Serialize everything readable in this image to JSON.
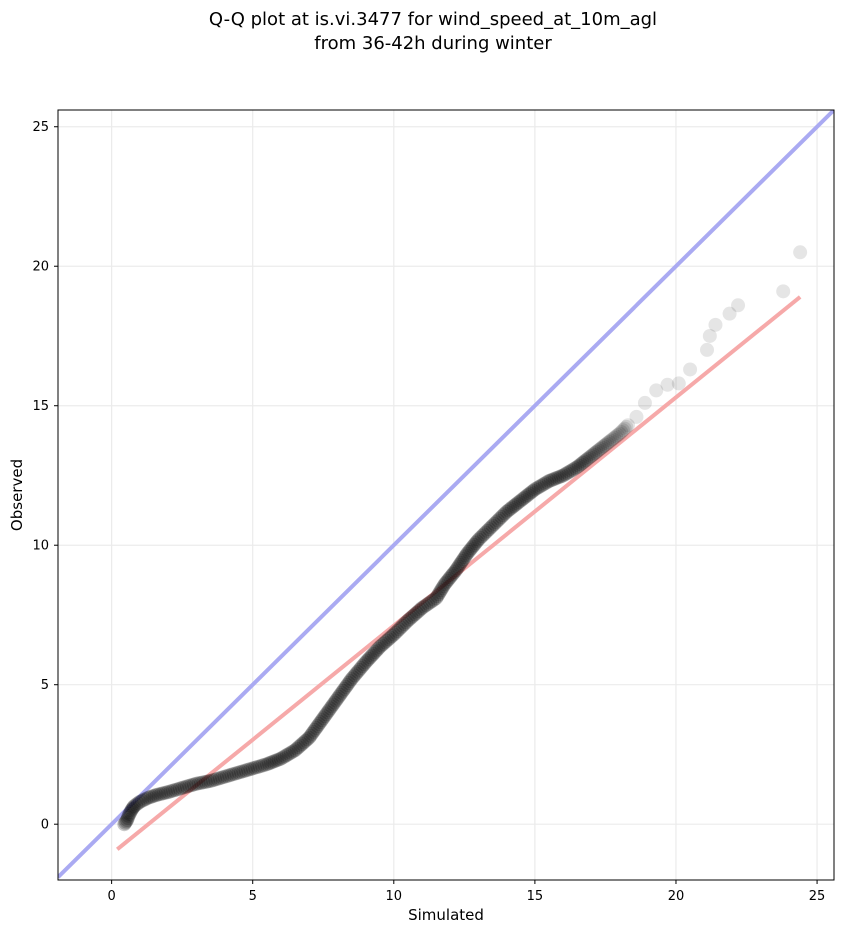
{
  "chart_data": {
    "type": "scatter",
    "title": [
      "Q-Q plot at is.vi.3477 for wind_speed_at_10m_agl",
      "from 36-42h during winter"
    ],
    "xlabel": "Simulated",
    "ylabel": "Observed",
    "xlim": [
      -1.9,
      25.6
    ],
    "ylim": [
      -2.0,
      25.6
    ],
    "x_ticks": [
      0,
      5,
      10,
      15,
      20,
      25
    ],
    "y_ticks": [
      0,
      5,
      10,
      15,
      20,
      25
    ],
    "grid": true,
    "marker_color": "#000000",
    "identity_line": {
      "color": "#aaaaf2",
      "from": [
        -1.9,
        -1.9
      ],
      "to": [
        25.6,
        25.6
      ]
    },
    "fit_line": {
      "color": "#f6a9a9",
      "from": [
        0.2,
        -0.9
      ],
      "to": [
        24.4,
        18.9
      ]
    },
    "quantile_curve": [
      [
        0.45,
        0.0
      ],
      [
        0.55,
        0.15
      ],
      [
        0.6,
        0.3
      ],
      [
        0.7,
        0.5
      ],
      [
        0.8,
        0.65
      ],
      [
        1.0,
        0.8
      ],
      [
        1.3,
        0.95
      ],
      [
        1.6,
        1.05
      ],
      [
        2.0,
        1.15
      ],
      [
        2.5,
        1.3
      ],
      [
        3.0,
        1.45
      ],
      [
        3.5,
        1.55
      ],
      [
        4.0,
        1.7
      ],
      [
        4.5,
        1.85
      ],
      [
        5.0,
        2.0
      ],
      [
        5.5,
        2.15
      ],
      [
        6.0,
        2.35
      ],
      [
        6.5,
        2.65
      ],
      [
        7.0,
        3.1
      ],
      [
        7.5,
        3.8
      ],
      [
        8.0,
        4.5
      ],
      [
        8.5,
        5.2
      ],
      [
        9.0,
        5.8
      ],
      [
        9.5,
        6.35
      ],
      [
        10.0,
        6.8
      ],
      [
        10.5,
        7.3
      ],
      [
        11.0,
        7.75
      ],
      [
        11.5,
        8.1
      ],
      [
        11.8,
        8.6
      ],
      [
        12.2,
        9.1
      ],
      [
        12.6,
        9.7
      ],
      [
        13.0,
        10.2
      ],
      [
        13.5,
        10.7
      ],
      [
        14.0,
        11.2
      ],
      [
        14.5,
        11.6
      ],
      [
        15.0,
        12.0
      ],
      [
        15.5,
        12.3
      ],
      [
        16.0,
        12.5
      ],
      [
        16.5,
        12.8
      ],
      [
        17.0,
        13.2
      ],
      [
        17.5,
        13.6
      ],
      [
        18.0,
        14.0
      ],
      [
        18.3,
        14.3
      ]
    ],
    "outliers": [
      [
        18.6,
        14.6
      ],
      [
        18.9,
        15.1
      ],
      [
        19.3,
        15.55
      ],
      [
        19.7,
        15.75
      ],
      [
        20.1,
        15.8
      ],
      [
        20.5,
        16.3
      ],
      [
        21.1,
        17.0
      ],
      [
        21.2,
        17.5
      ],
      [
        21.4,
        17.9
      ],
      [
        21.9,
        18.3
      ],
      [
        22.2,
        18.6
      ],
      [
        23.8,
        19.1
      ],
      [
        24.4,
        20.5
      ]
    ]
  }
}
